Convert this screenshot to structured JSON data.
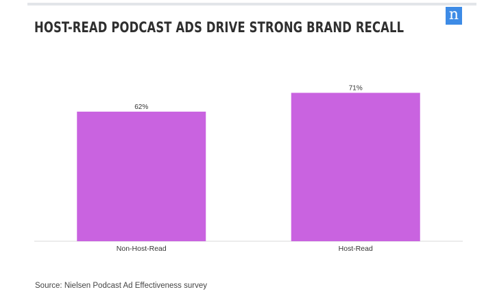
{
  "header": {
    "title": "HOST-READ PODCAST ADS DRIVE STRONG BRAND RECALL",
    "logo_text": "n",
    "logo_color": "#3d8be6"
  },
  "chart_data": {
    "type": "bar",
    "categories": [
      "Non-Host-Read",
      "Host-Read"
    ],
    "values": [
      62,
      71
    ],
    "value_labels": [
      "62%",
      "71%"
    ],
    "title": "HOST-READ PODCAST ADS DRIVE STRONG BRAND RECALL",
    "xlabel": "",
    "ylabel": "",
    "grid": false,
    "legend": "none",
    "bar_color": "#c963e0"
  },
  "footer": {
    "source": "Source: Nielsen Podcast Ad Effectiveness survey"
  }
}
